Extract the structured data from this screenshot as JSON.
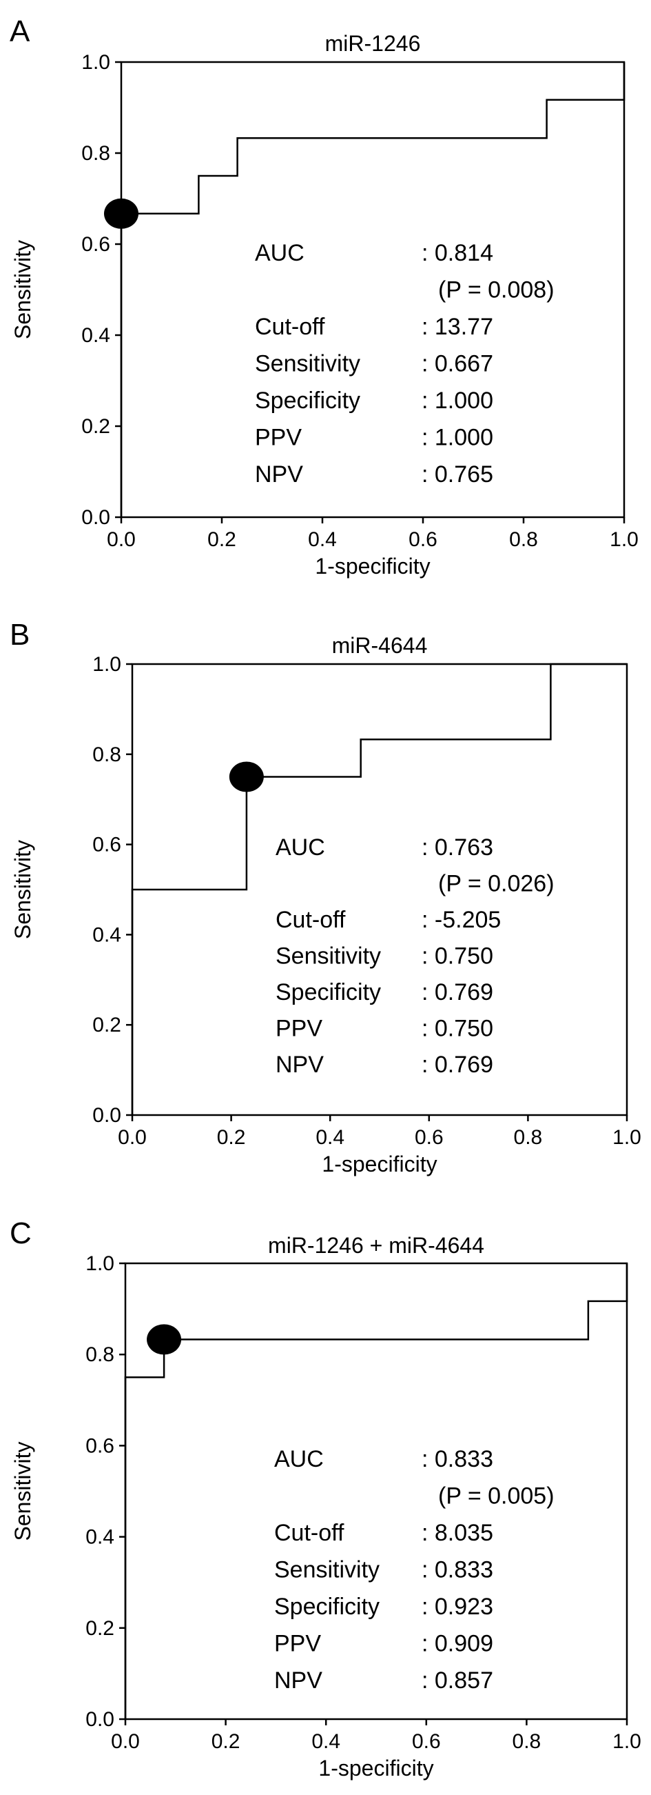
{
  "chart_data": [
    {
      "type": "line",
      "panel": "A",
      "title": "miR-1246",
      "xlabel": "1-specificity",
      "ylabel": "Sensitivity",
      "xlim": [
        0,
        1
      ],
      "ylim": [
        0,
        1
      ],
      "xticks": [
        "0.0",
        "0.2",
        "0.4",
        "0.6",
        "0.8",
        "1.0"
      ],
      "yticks": [
        "0.0",
        "0.2",
        "0.4",
        "0.6",
        "0.8",
        "1.0"
      ],
      "grid": false,
      "roc": [
        [
          0,
          0
        ],
        [
          0,
          0.667
        ],
        [
          0.154,
          0.667
        ],
        [
          0.154,
          0.75
        ],
        [
          0.231,
          0.75
        ],
        [
          0.231,
          0.833
        ],
        [
          0.846,
          0.833
        ],
        [
          0.846,
          0.917
        ],
        [
          1.0,
          0.917
        ],
        [
          1.0,
          1.0
        ]
      ],
      "cutoff_point": [
        0,
        0.667
      ],
      "stats": [
        {
          "label": "AUC",
          "value": ": 0.814"
        },
        {
          "label": "",
          "value": "(P = 0.008)"
        },
        {
          "label": "Cut-off",
          "value": ": 13.77"
        },
        {
          "label": "Sensitivity",
          "value": ": 0.667"
        },
        {
          "label": "Specificity",
          "value": ": 1.000"
        },
        {
          "label": "PPV",
          "value": ": 1.000"
        },
        {
          "label": "NPV",
          "value": ": 0.765"
        }
      ]
    },
    {
      "type": "line",
      "panel": "B",
      "title": "miR-4644",
      "xlabel": "1-specificity",
      "ylabel": "Sensitivity",
      "xlim": [
        0,
        1
      ],
      "ylim": [
        0,
        1
      ],
      "xticks": [
        "0.0",
        "0.2",
        "0.4",
        "0.6",
        "0.8",
        "1.0"
      ],
      "yticks": [
        "0.0",
        "0.2",
        "0.4",
        "0.6",
        "0.8",
        "1.0"
      ],
      "grid": false,
      "roc": [
        [
          0,
          0
        ],
        [
          0,
          0.5
        ],
        [
          0.231,
          0.5
        ],
        [
          0.231,
          0.75
        ],
        [
          0.462,
          0.75
        ],
        [
          0.462,
          0.833
        ],
        [
          0.846,
          0.833
        ],
        [
          0.846,
          1.0
        ],
        [
          1.0,
          1.0
        ]
      ],
      "cutoff_point": [
        0.231,
        0.75
      ],
      "stats": [
        {
          "label": "AUC",
          "value": ": 0.763"
        },
        {
          "label": "",
          "value": "(P = 0.026)"
        },
        {
          "label": "Cut-off",
          "value": ": -5.205"
        },
        {
          "label": "Sensitivity",
          "value": ": 0.750"
        },
        {
          "label": "Specificity",
          "value": ": 0.769"
        },
        {
          "label": "PPV",
          "value": ": 0.750"
        },
        {
          "label": "NPV",
          "value": ": 0.769"
        }
      ]
    },
    {
      "type": "line",
      "panel": "C",
      "title": "miR-1246 + miR-4644",
      "xlabel": "1-specificity",
      "ylabel": "Sensitivity",
      "xlim": [
        0,
        1
      ],
      "ylim": [
        0,
        1
      ],
      "xticks": [
        "0.0",
        "0.2",
        "0.4",
        "0.6",
        "0.8",
        "1.0"
      ],
      "yticks": [
        "0.0",
        "0.2",
        "0.4",
        "0.6",
        "0.8",
        "1.0"
      ],
      "grid": false,
      "roc": [
        [
          0,
          0
        ],
        [
          0,
          0.75
        ],
        [
          0.077,
          0.75
        ],
        [
          0.077,
          0.833
        ],
        [
          0.923,
          0.833
        ],
        [
          0.923,
          0.917
        ],
        [
          1.0,
          0.917
        ],
        [
          1.0,
          1.0
        ]
      ],
      "cutoff_point": [
        0.077,
        0.833
      ],
      "stats": [
        {
          "label": "AUC",
          "value": ": 0.833"
        },
        {
          "label": "",
          "value": "(P = 0.005)"
        },
        {
          "label": "Cut-off",
          "value": ": 8.035"
        },
        {
          "label": "Sensitivity",
          "value": ": 0.833"
        },
        {
          "label": "Specificity",
          "value": ": 0.923"
        },
        {
          "label": "PPV",
          "value": ": 0.909"
        },
        {
          "label": "NPV",
          "value": ": 0.857"
        }
      ]
    }
  ]
}
